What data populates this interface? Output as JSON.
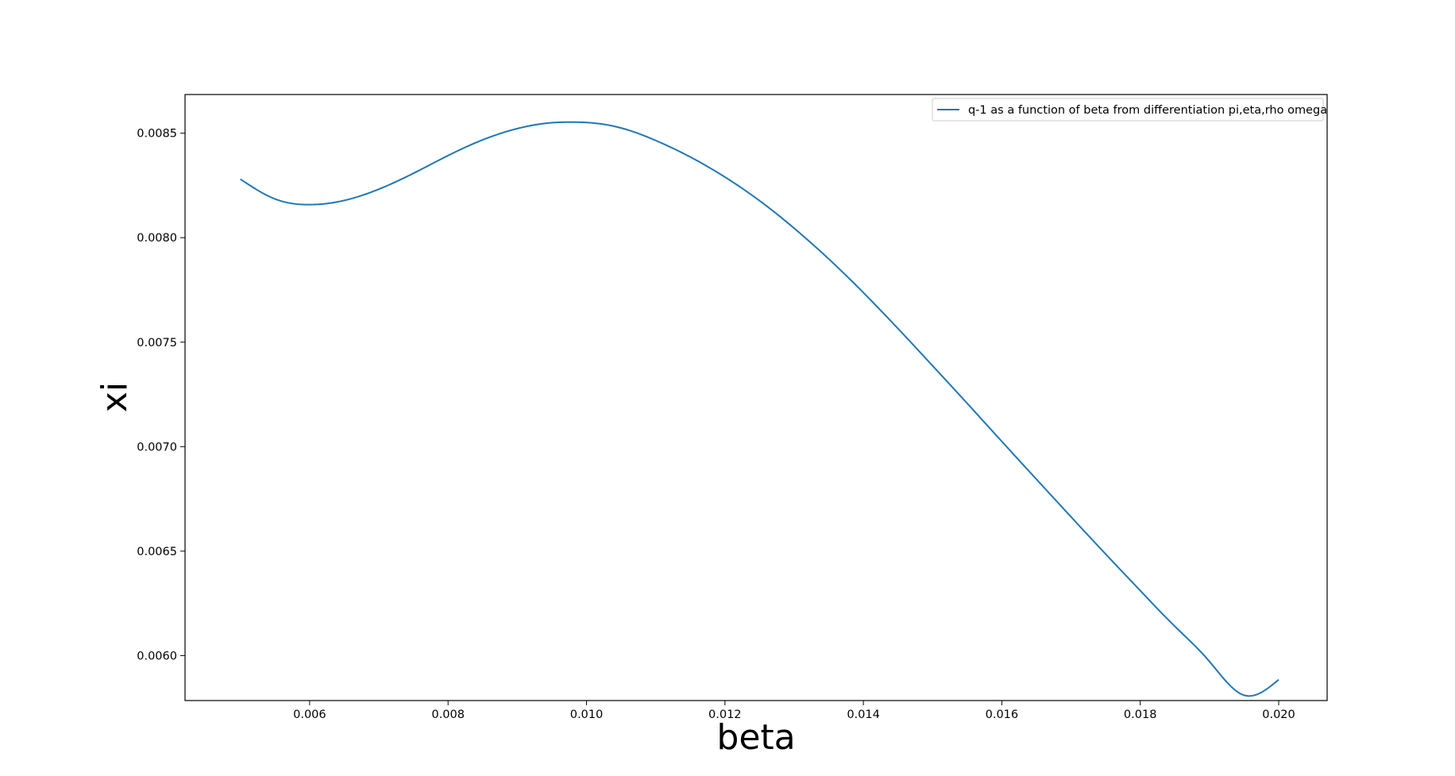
{
  "chart_data": {
    "type": "line",
    "title": "",
    "xlabel": "beta",
    "ylabel": "xi",
    "xlim": [
      0.0042,
      0.0207
    ],
    "ylim": [
      0.005785,
      0.008685
    ],
    "x_ticks": [
      0.006,
      0.008,
      0.01,
      0.012,
      0.014,
      0.016,
      0.018,
      0.02
    ],
    "x_tick_labels": [
      "0.006",
      "0.008",
      "0.010",
      "0.012",
      "0.014",
      "0.016",
      "0.018",
      "0.020"
    ],
    "y_ticks": [
      0.006,
      0.0065,
      0.007,
      0.0075,
      0.008,
      0.0085
    ],
    "y_tick_labels": [
      "0.0060",
      "0.0065",
      "0.0070",
      "0.0075",
      "0.0080",
      "0.0085"
    ],
    "grid": false,
    "legend_position": "top-right",
    "series": [
      {
        "name": "q-1 as a function of beta from differentiation pi,eta,rho omega",
        "color": "#1f77b4",
        "x": [
          0.005,
          0.0055,
          0.006,
          0.0065,
          0.007,
          0.0075,
          0.008,
          0.0085,
          0.009,
          0.0095,
          0.0098,
          0.01,
          0.0105,
          0.011,
          0.0115,
          0.012,
          0.0125,
          0.013,
          0.0135,
          0.014,
          0.0145,
          0.015,
          0.0155,
          0.016,
          0.0165,
          0.017,
          0.0175,
          0.018,
          0.0185,
          0.019,
          0.0195,
          0.02
        ],
        "y": [
          0.00828,
          0.008185,
          0.008158,
          0.008178,
          0.008232,
          0.008308,
          0.008393,
          0.008468,
          0.008522,
          0.00855,
          0.008553,
          0.008551,
          0.008525,
          0.008465,
          0.008386,
          0.00829,
          0.008177,
          0.008045,
          0.007898,
          0.007737,
          0.007565,
          0.007387,
          0.007207,
          0.007025,
          0.006844,
          0.006664,
          0.006486,
          0.006311,
          0.00614,
          0.005972,
          0.00581,
          0.005885
        ]
      }
    ]
  }
}
